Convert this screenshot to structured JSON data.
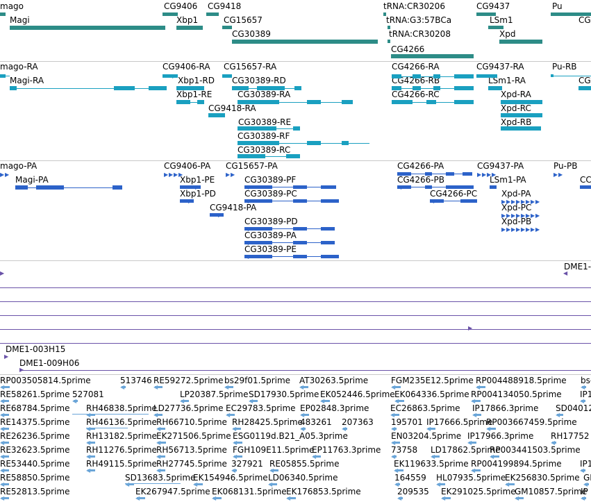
{
  "colors": {
    "gene": "#2d8c87",
    "transcript": "#1aa0c0",
    "protein": "#2c62c9",
    "clone": "#6a52a8",
    "est": "#6aa5d8",
    "separator": "#c8c8c8"
  },
  "gene_labels": [
    "mago",
    "CG9406",
    "CG9418",
    "tRNA:CR30206",
    "CG9437",
    "Pu",
    "Magi",
    "Xbp1",
    "CG15657",
    "tRNA:G3:57BCa",
    "LSm1",
    "CG",
    "CG30389",
    "tRNA:CR30208",
    "Xpd",
    "CG4266"
  ],
  "transcript_labels": [
    "mago-RA",
    "CG9406-RA",
    "CG15657-RA",
    "CG4266-RA",
    "CG9437-RA",
    "Pu-RB",
    "Magi-RA",
    "Xbp1-RD",
    "CG30389-RD",
    "CG4266-RB",
    "LSm1-RA",
    "CG",
    "Xbp1-RE",
    "CG30389-RA",
    "CG4266-RC",
    "Xpd-RA",
    "CG9418-RA",
    "Xpd-RC",
    "CG30389-RE",
    "Xpd-RB",
    "CG30389-RF",
    "CG30389-RC"
  ],
  "protein_labels": [
    "mago-PA",
    "CG9406-PA",
    "CG15657-PA",
    "CG4266-PA",
    "CG9437-PA",
    "Pu-PB",
    "Magi-PA",
    "Xbp1-PE",
    "CG30389-PF",
    "CG4266-PB",
    "LSm1-PA",
    "CC",
    "Xbp1-PD",
    "CG30389-PC",
    "CG4266-PC",
    "Xpd-PA",
    "CG9418-PA",
    "Xpd-PC",
    "CG30389-PD",
    "Xpd-PB",
    "CG30389-PA",
    "CG30389-PE"
  ],
  "clone_labels": [
    "DME1-",
    "DME1-003H15",
    "DME1-009H06"
  ],
  "est_labels": [
    "RP003505814.5prime",
    "513746",
    "RE59272.5prime",
    "bs29f01.5prime",
    "AT30263.5prime",
    "FGM235E12.5prime",
    "RP004488918.5prime",
    "bs-",
    "RE58261.5prime",
    "527081",
    "LP20387.5prime",
    "SD17930.5prime",
    "EK052446.5prime",
    "EK064336.5prime",
    "RP004134050.5prime",
    "IP1",
    "RE68784.5prime",
    "RH46838.5prime",
    "LD27736.5prime",
    "EC29783.5prime",
    "EP02848.3prime",
    "EC26863.5prime",
    "IP17866.3prime",
    "SD04012.3pr",
    "RE14375.5prime",
    "RH46136.5prime",
    "RH66710.5prime",
    "RH28425.5prime",
    "483261",
    "207363",
    "195701",
    "IP17666.5prime",
    "RP003667459.5prime",
    "RE26236.5prime",
    "RH13182.5prime",
    "EK271506.5prime",
    "ESG0119d.B21_A05.3prime",
    "EN03204.5prime",
    "IP17966.3prime",
    "RH17752",
    "RE32623.5prime",
    "RH11276.5prime",
    "RH56713.5prime",
    "FGH109E11.5prime",
    "EP11763.3prime",
    "73758",
    "LD17862.5prime",
    "RP003441503.5prime",
    "RE53440.5prime",
    "RH49115.5prime",
    "RH27745.5prime",
    "327921",
    "RE05855.5prime",
    "EK119633.5prime",
    "RP004199894.5prime",
    "IP1",
    "RE58850.5prime",
    "SD13683.5prime",
    "EK154946.5prime",
    "LD06340.5prime",
    "164559",
    "HL07935.5prime",
    "EK256830.5prime",
    "GI",
    "RE52813.5prime",
    "EK267947.5prime",
    "EK068131.5prime",
    "EK176853.5prime",
    "209535",
    "EK291025.5prime",
    "GM10857.5prime",
    "IP"
  ]
}
